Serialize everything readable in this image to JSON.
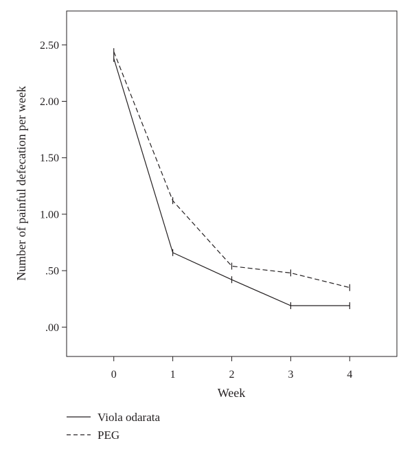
{
  "chart_data": {
    "type": "line",
    "title": "",
    "xlabel": "Week",
    "ylabel": "Number of painful defecation per week",
    "x": [
      0,
      1,
      2,
      3,
      4
    ],
    "xlim": [
      -0.8,
      4.8
    ],
    "ylim": [
      -0.26,
      2.8
    ],
    "x_ticks": [
      0,
      1,
      2,
      3,
      4
    ],
    "x_tick_labels": [
      "0",
      "1",
      "2",
      "3",
      "4"
    ],
    "y_ticks": [
      0,
      0.5,
      1.0,
      1.5,
      2.0,
      2.5
    ],
    "y_tick_labels": [
      ".00",
      ".50",
      "1.00",
      "1.50",
      "2.00",
      "2.50"
    ],
    "grid": false,
    "legend_position": "bottom-left",
    "series": [
      {
        "name": "Viola odarata",
        "line_style": "solid",
        "color": "#231f20",
        "values": [
          2.38,
          0.66,
          0.42,
          0.19,
          0.19
        ]
      },
      {
        "name": "PEG",
        "line_style": "dashed",
        "color": "#231f20",
        "values": [
          2.44,
          1.12,
          0.54,
          0.48,
          0.35
        ]
      }
    ]
  }
}
